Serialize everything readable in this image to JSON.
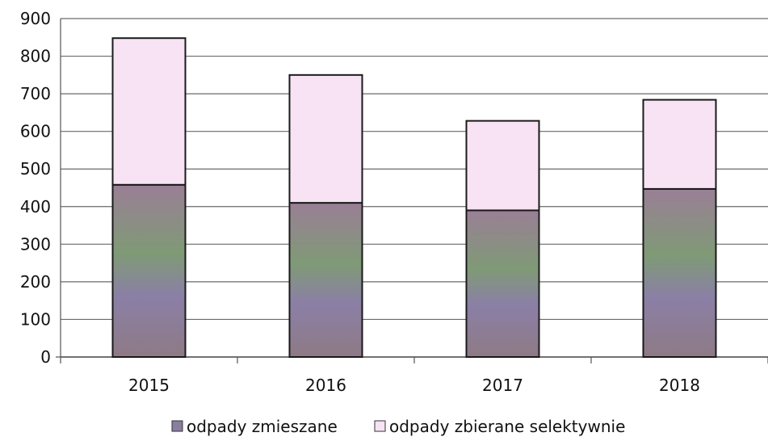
{
  "chart_data": {
    "type": "bar",
    "stacked": true,
    "categories": [
      "2015",
      "2016",
      "2017",
      "2018"
    ],
    "series": [
      {
        "name": "odpady zmieszane",
        "values": [
          458,
          410,
          390,
          447
        ],
        "color": "#8a7fa0"
      },
      {
        "name": "odpady zbierane selektywnie",
        "values": [
          390,
          340,
          238,
          237
        ],
        "color": "#f7e3f4"
      }
    ],
    "ylim": [
      0,
      900
    ],
    "yticks": [
      "0",
      "100",
      "200",
      "300",
      "400",
      "500",
      "600",
      "700",
      "800",
      "900"
    ],
    "title": "",
    "xlabel": "",
    "ylabel": "",
    "grid": true,
    "legend_position": "bottom"
  }
}
